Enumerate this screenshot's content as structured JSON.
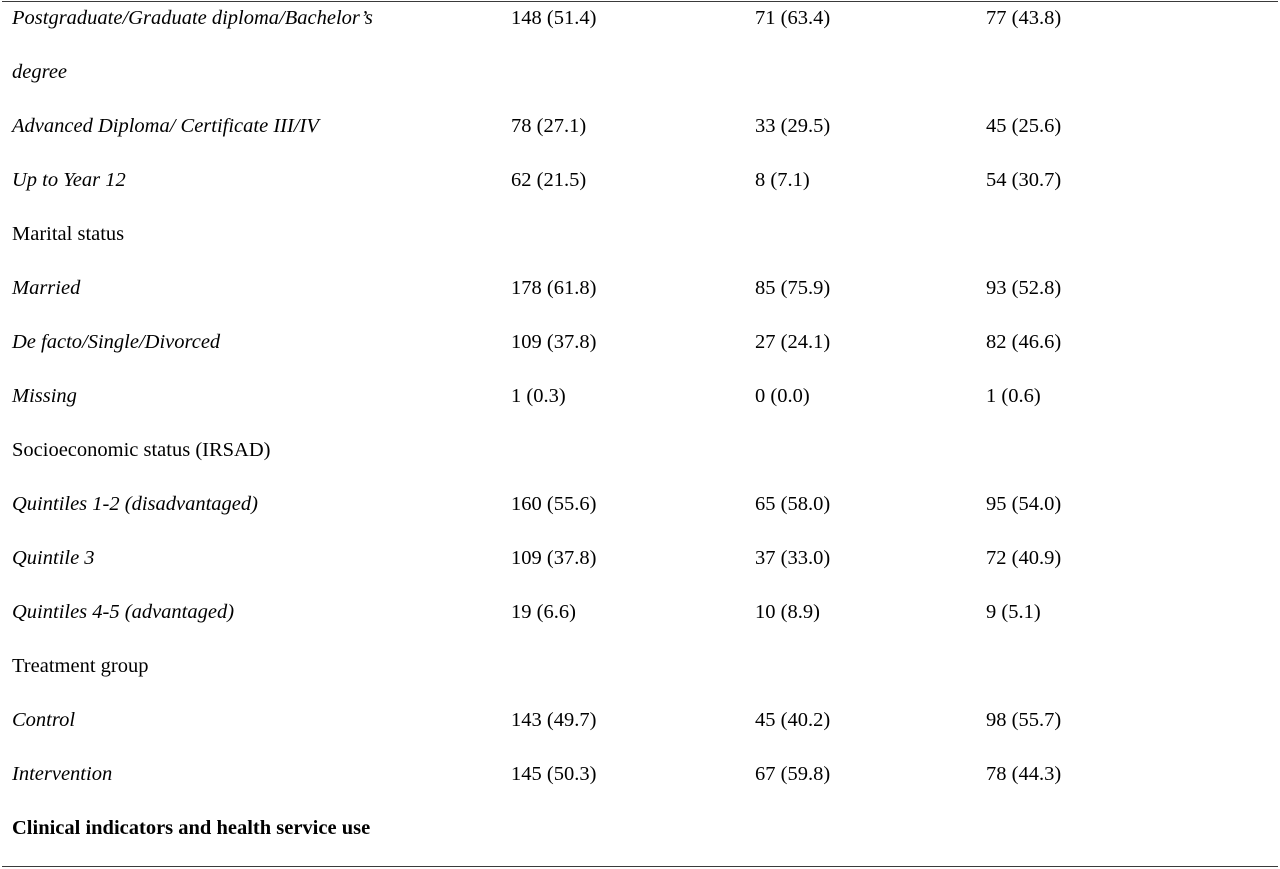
{
  "table": {
    "rows": [
      {
        "label": "Postgraduate/Graduate diploma/Bachelor’s",
        "v1": "148 (51.4)",
        "v2": "71 (63.4)",
        "v3": "77 (43.8)"
      },
      {
        "label": "degree",
        "v1": "",
        "v2": "",
        "v3": ""
      },
      {
        "label": "Advanced Diploma/ Certificate III/IV",
        "v1": "78 (27.1)",
        "v2": "33 (29.5)",
        "v3": "45 (25.6)"
      },
      {
        "label": "Up to Year 12",
        "v1": "62 (21.5)",
        "v2": "8 (7.1)",
        "v3": "54 (30.7)"
      },
      {
        "label": "Marital status",
        "v1": "",
        "v2": "",
        "v3": ""
      },
      {
        "label": "Married",
        "v1": "178 (61.8)",
        "v2": "85 (75.9)",
        "v3": "93 (52.8)"
      },
      {
        "label": "De facto/Single/Divorced",
        "v1": "109 (37.8)",
        "v2": "27 (24.1)",
        "v3": "82 (46.6)"
      },
      {
        "label": "Missing",
        "v1": "1 (0.3)",
        "v2": "0 (0.0)",
        "v3": "1 (0.6)"
      },
      {
        "label": "Socioeconomic status (IRSAD)",
        "v1": "",
        "v2": "",
        "v3": ""
      },
      {
        "label": "Quintiles 1-2 (disadvantaged)",
        "v1": "160 (55.6)",
        "v2": "65 (58.0)",
        "v3": "95 (54.0)"
      },
      {
        "label": "Quintile 3",
        "v1": "109 (37.8)",
        "v2": "37 (33.0)",
        "v3": "72 (40.9)"
      },
      {
        "label": "Quintiles 4-5 (advantaged)",
        "v1": "19 (6.6)",
        "v2": "10 (8.9)",
        "v3": "9 (5.1)"
      },
      {
        "label": "Treatment group",
        "v1": "",
        "v2": "",
        "v3": ""
      },
      {
        "label": "Control",
        "v1": "143 (49.7)",
        "v2": "45 (40.2)",
        "v3": "98 (55.7)"
      },
      {
        "label": "Intervention",
        "v1": "145 (50.3)",
        "v2": "67 (59.8)",
        "v3": "78 (44.3)"
      },
      {
        "label": "Clinical indicators and health service use",
        "v1": "",
        "v2": "",
        "v3": ""
      }
    ]
  }
}
